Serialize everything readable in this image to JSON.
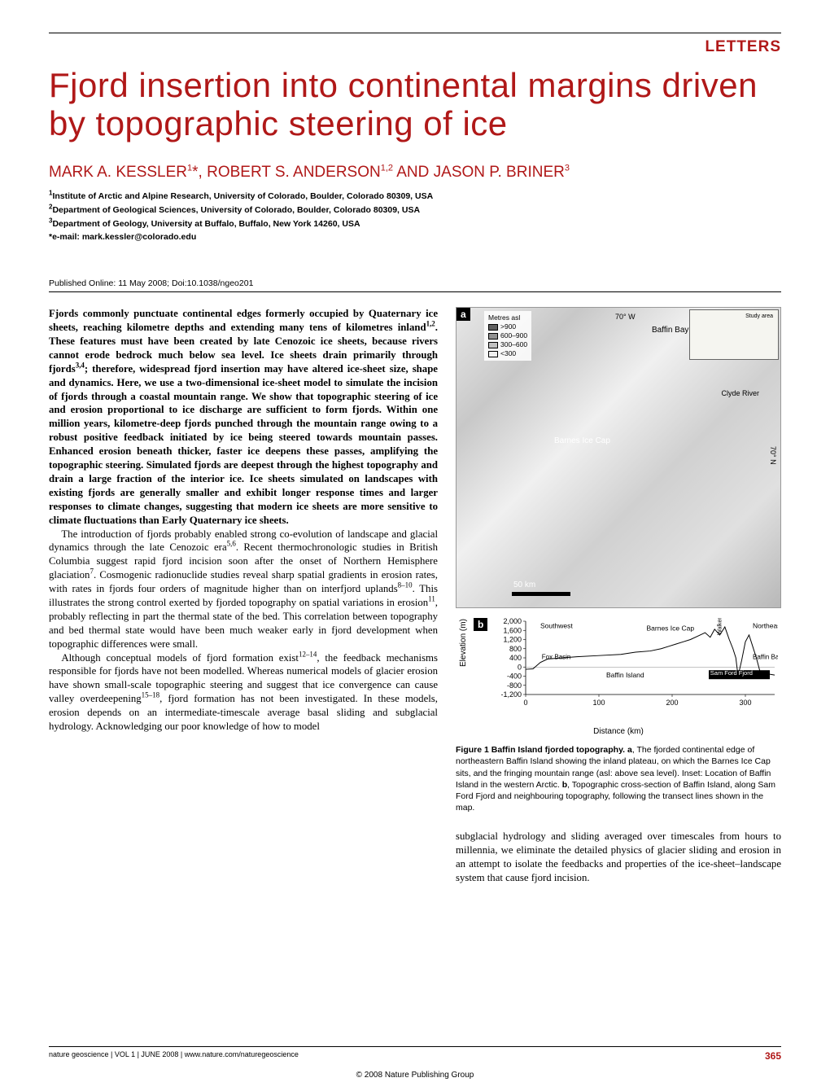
{
  "header": {
    "section_label": "LETTERS"
  },
  "title": "Fjord insertion into continental margins driven by topographic steering of ice",
  "authors_html": "MARK A. KESSLER<sup>1</sup>*, ROBERT S. ANDERSON<sup>1,2</sup> AND JASON P. BRINER<sup>3</sup>",
  "affiliations": [
    "<sup>1</sup>Institute of Arctic and Alpine Research, University of Colorado, Boulder, Colorado 80309, USA",
    "<sup>2</sup>Department of Geological Sciences, University of Colorado, Boulder, Colorado 80309, USA",
    "<sup>3</sup>Department of Geology, University at Buffalo, Buffalo, New York 14260, USA",
    "*e-mail: mark.kessler@colorado.edu"
  ],
  "pub_line": "Published Online: 11 May 2008; Doi:10.1038/ngeo201",
  "abstract": "Fjords commonly punctuate continental edges formerly occupied by Quaternary ice sheets, reaching kilometre depths and extending many tens of kilometres inland<sup>1,2</sup>. These features must have been created by late Cenozoic ice sheets, because rivers cannot erode bedrock much below sea level. Ice sheets drain primarily through fjords<sup>3,4</sup>; therefore, widespread fjord insertion may have altered ice-sheet size, shape and dynamics. Here, we use a two-dimensional ice-sheet model to simulate the incision of fjords through a coastal mountain range. We show that topographic steering of ice and erosion proportional to ice discharge are sufficient to form fjords. Within one million years, kilometre-deep fjords punched through the mountain range owing to a robust positive feedback initiated by ice being steered towards mountain passes. Enhanced erosion beneath thicker, faster ice deepens these passes, amplifying the topographic steering. Simulated fjords are deepest through the highest topography and drain a large fraction of the interior ice. Ice sheets simulated on landscapes with existing fjords are generally smaller and exhibit longer response times and larger responses to climate changes, suggesting that modern ice sheets are more sensitive to climate fluctuations than Early Quaternary ice sheets.",
  "body_p2": "The introduction of fjords probably enabled strong co-evolution of landscape and glacial dynamics through the late Cenozoic era<sup>5,6</sup>. Recent thermochronologic studies in British Columbia suggest rapid fjord incision soon after the onset of Northern Hemisphere glaciation<sup>7</sup>. Cosmogenic radionuclide studies reveal sharp spatial gradients in erosion rates, with rates in fjords four orders of magnitude higher than on interfjord uplands<sup>8–10</sup>. This illustrates the strong control exerted by fjorded topography on spatial variations in erosion<sup>11</sup>, probably reflecting in part the thermal state of the bed. This correlation between topography and bed thermal state would have been much weaker early in fjord development when topographic differences were small.",
  "body_p3": "Although conceptual models of fjord formation exist<sup>12–14</sup>, the feedback mechanisms responsible for fjords have not been modelled. Whereas numerical models of glacier erosion have shown small-scale topographic steering and suggest that ice convergence can cause valley overdeepening<sup>15–18</sup>, fjord formation has not been investigated. In these models, erosion depends on an intermediate-timescale average basal sliding and subglacial hydrology. Acknowledging our poor knowledge of how to model",
  "right_text": "subglacial hydrology and sliding averaged over timescales from hours to millennia, we eliminate the detailed physics of glacier sliding and erosion in an attempt to isolate the feedbacks and properties of the ice-sheet–landscape system that cause fjord incision.",
  "figure1": {
    "panel_a": {
      "label": "a",
      "legend_title": "Metres asl",
      "legend_items": [
        {
          "label": ">900",
          "color": "#606060"
        },
        {
          "label": "600–900",
          "color": "#909090"
        },
        {
          "label": "300–600",
          "color": "#c0c0c0"
        },
        {
          "label": "<300",
          "color": "#f0f0f0"
        }
      ],
      "map_labels": {
        "lon": "70° W",
        "lat": "70° N",
        "baffin_bay": "Baffin Bay",
        "clyde_river": "Clyde River",
        "barnes": "Barnes Ice Cap",
        "study_area": "Study area"
      },
      "scale": "50 km",
      "inset_colors": {
        "bg": "#f5f5f0",
        "land": "#cccccc"
      }
    },
    "panel_b": {
      "label": "b",
      "type": "line",
      "xlabel": "Distance (km)",
      "ylabel": "Elevation (m)",
      "xlim": [
        0,
        340
      ],
      "ylim": [
        -1200,
        2000
      ],
      "xticks": [
        0,
        100,
        200,
        300
      ],
      "yticks": [
        -1200,
        -800,
        -400,
        0,
        400,
        800,
        1200,
        1600,
        2000
      ],
      "annotations": [
        "Southwest",
        "Northeast",
        "Fox Basin",
        "Barnes Ice Cap",
        "Baffin Island",
        "Walker arm",
        "Sam Ford Fjord",
        "Baffin Bay"
      ],
      "profile": [
        [
          0,
          -100
        ],
        [
          10,
          -80
        ],
        [
          20,
          200
        ],
        [
          30,
          350
        ],
        [
          50,
          400
        ],
        [
          70,
          450
        ],
        [
          100,
          500
        ],
        [
          130,
          550
        ],
        [
          150,
          650
        ],
        [
          170,
          700
        ],
        [
          185,
          800
        ],
        [
          195,
          900
        ],
        [
          205,
          1000
        ],
        [
          215,
          1100
        ],
        [
          225,
          1200
        ],
        [
          235,
          1350
        ],
        [
          245,
          1500
        ],
        [
          252,
          1300
        ],
        [
          258,
          1650
        ],
        [
          265,
          1400
        ],
        [
          272,
          1750
        ],
        [
          278,
          1200
        ],
        [
          283,
          800
        ],
        [
          287,
          400
        ],
        [
          290,
          -400
        ],
        [
          295,
          300
        ],
        [
          300,
          1100
        ],
        [
          305,
          1400
        ],
        [
          310,
          900
        ],
        [
          315,
          400
        ],
        [
          320,
          -200
        ],
        [
          325,
          -400
        ],
        [
          330,
          -300
        ],
        [
          340,
          -350
        ]
      ],
      "line_color": "#000000",
      "line_width": 1,
      "font_size_axis": 9,
      "font_size_label": 10
    },
    "caption_html": "<span class='fignum'>Figure 1 Baffin Island fjorded topography. a</span>, The fjorded continental edge of northeastern Baffin Island showing the inland plateau, on which the Barnes Ice Cap sits, and the fringing mountain range (asl: above sea level). Inset: Location of Baffin Island in the western Arctic. <b>b</b>, Topographic cross-section of Baffin Island, along Sam Ford Fjord and neighbouring topography, following the transect lines shown in the map."
  },
  "footer": {
    "journal": "nature geoscience | VOL 1 | JUNE 2008 | www.nature.com/naturegeoscience",
    "page": "365",
    "copyright": "© 2008 Nature Publishing Group"
  },
  "colors": {
    "accent_red": "#b01818",
    "text": "#000000",
    "background": "#ffffff"
  }
}
